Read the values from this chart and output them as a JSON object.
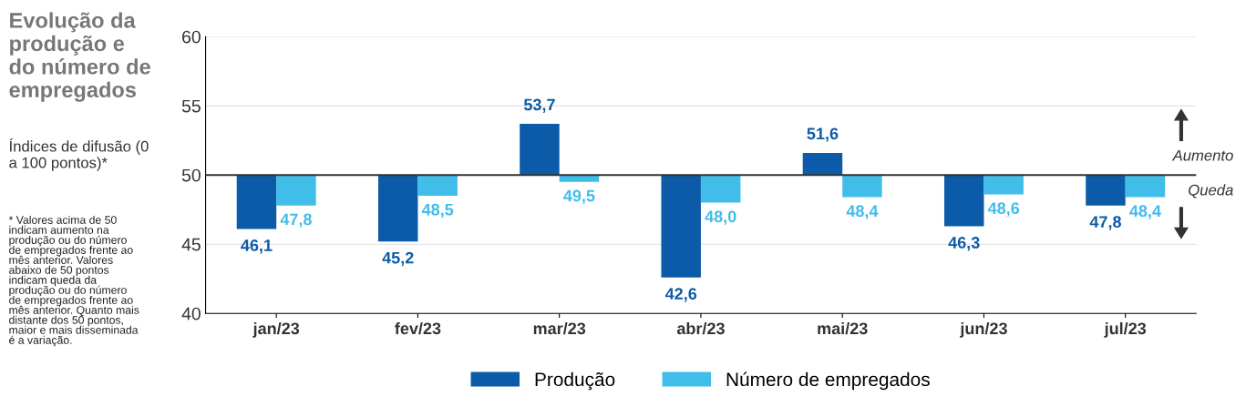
{
  "chart_data": {
    "type": "bar",
    "title": "Evolução da produção e do número de empregados",
    "subtitle": "Índices de difusão (0 a 100 pontos)*",
    "annotations": [
      "* Valores acima de 50 indicam aumento na produção ou do número de empregados frente ao mês anterior. Valores abaixo de 50 pontos indicam queda da produção ou do número de empregados frente ao mês anterior. Quanto mais distante dos 50 pontos, maior e mais disseminada é a variação.",
      "Aumento",
      "Queda"
    ],
    "categories": [
      "jan/23",
      "fev/23",
      "mar/23",
      "abr/23",
      "mai/23",
      "jun/23",
      "jul/23"
    ],
    "series": [
      {
        "name": "Produção",
        "color": "#0b5ba8",
        "base": [
          50,
          50,
          50,
          50,
          50,
          50,
          50
        ],
        "values": [
          -3.9,
          -4.8,
          3.7,
          -7.4,
          1.6,
          -3.7,
          -2.2
        ],
        "value_labels": [
          "46,1",
          "45,2",
          "53,7",
          "42,6",
          "51,6",
          "46,3",
          "47,8"
        ]
      },
      {
        "name": "Número de empregados",
        "color": "#41bdea",
        "base": [
          50,
          50,
          50,
          50,
          50,
          50,
          50
        ],
        "values": [
          -2.2,
          -1.5,
          -0.5,
          -2.0,
          -1.6,
          -1.4,
          -1.6
        ],
        "value_labels": [
          "47,8",
          "48,5",
          "49,5",
          "48,0",
          "48,4",
          "48,6",
          "48,4"
        ]
      }
    ],
    "ylim": [
      40,
      60
    ],
    "yticks": [
      40,
      45,
      50,
      55,
      60
    ],
    "grid": "y",
    "legend": "bottom",
    "ref_lines": [
      {
        "axis": "y",
        "value": 50,
        "color": "#333333"
      }
    ]
  }
}
